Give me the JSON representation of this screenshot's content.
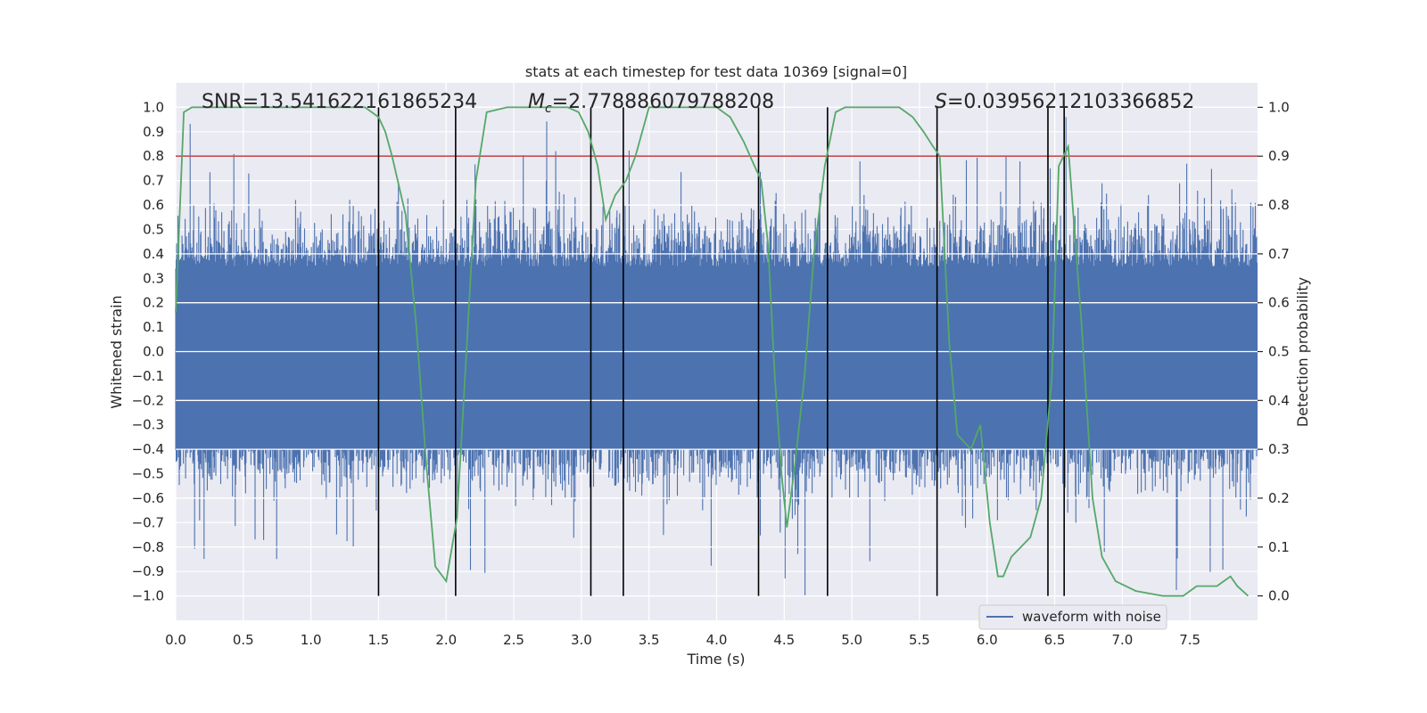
{
  "chart_data": {
    "type": "line",
    "title": "stats at each timestep for test data 10369 [signal=0]",
    "xlabel": "Time (s)",
    "ylabel": "Whitened strain",
    "y2label": "Detection probability",
    "xlim": [
      0.0,
      8.0
    ],
    "ylim": [
      -1.1,
      1.1
    ],
    "y2lim": [
      -0.05,
      1.05
    ],
    "xticks": [
      "0.0",
      "0.5",
      "1.0",
      "1.5",
      "2.0",
      "2.5",
      "3.0",
      "3.5",
      "4.0",
      "4.5",
      "5.0",
      "5.5",
      "6.0",
      "6.5",
      "7.0",
      "7.5"
    ],
    "yticks": [
      "1.0",
      "0.9",
      "0.8",
      "0.7",
      "0.6",
      "0.5",
      "0.4",
      "0.3",
      "0.2",
      "0.1",
      "0.0",
      "−0.1",
      "−0.2",
      "−0.3",
      "−0.4",
      "−0.5",
      "−0.6",
      "−0.7",
      "−0.8",
      "−0.9",
      "−1.0"
    ],
    "y2ticks": [
      "1.0",
      "0.9",
      "0.8",
      "0.7",
      "0.6",
      "0.5",
      "0.4",
      "0.3",
      "0.2",
      "0.1",
      "0.0"
    ],
    "threshold": 0.9,
    "annotations": {
      "snr": "SNR=13.541622161865234",
      "mc_symbol": "M",
      "mc_sub": "c",
      "mc_value": "=2.778886079788208",
      "s_symbol": "S",
      "s_value": "=0.03956212103366852"
    },
    "event_lines_x": [
      1.5,
      2.07,
      3.07,
      3.31,
      4.31,
      4.82,
      5.63,
      6.45,
      6.57
    ],
    "legend": {
      "label": "waveform with noise",
      "position": "lower-right"
    },
    "series": [
      {
        "name": "waveform with noise",
        "color": "#4c72b0",
        "description": "whitened strain noise, approx amplitude ±0.35 core with spikes up to ±1.0",
        "core_amplitude": 0.35,
        "max_amplitude": 1.0
      },
      {
        "name": "Detection probability",
        "color": "#55a868",
        "x": [
          0.0,
          0.06,
          0.12,
          0.2,
          0.4,
          0.6,
          0.8,
          1.0,
          1.2,
          1.4,
          1.5,
          1.55,
          1.6,
          1.7,
          1.78,
          1.85,
          1.92,
          2.0,
          2.08,
          2.15,
          2.22,
          2.3,
          2.45,
          2.6,
          2.8,
          2.9,
          2.98,
          3.05,
          3.12,
          3.18,
          3.25,
          3.33,
          3.4,
          3.45,
          3.5,
          3.6,
          3.8,
          4.0,
          4.1,
          4.2,
          4.28,
          4.33,
          4.38,
          4.43,
          4.48,
          4.52,
          4.58,
          4.65,
          4.72,
          4.8,
          4.88,
          4.95,
          5.05,
          5.2,
          5.35,
          5.45,
          5.53,
          5.6,
          5.65,
          5.72,
          5.78,
          5.88,
          5.95,
          6.02,
          6.08,
          6.12,
          6.18,
          6.25,
          6.32,
          6.4,
          6.48,
          6.53,
          6.6,
          6.7,
          6.78,
          6.85,
          6.95,
          7.1,
          7.3,
          7.45,
          7.5,
          7.55,
          7.62,
          7.7,
          7.75,
          7.8,
          7.85,
          7.93
        ],
        "values": [
          0.58,
          0.99,
          1.0,
          1.0,
          1.0,
          1.0,
          1.0,
          1.0,
          1.0,
          1.0,
          0.98,
          0.95,
          0.9,
          0.78,
          0.55,
          0.28,
          0.06,
          0.03,
          0.16,
          0.5,
          0.85,
          0.99,
          1.0,
          1.0,
          1.0,
          1.0,
          0.99,
          0.95,
          0.88,
          0.77,
          0.82,
          0.85,
          0.9,
          0.95,
          1.0,
          1.0,
          1.0,
          1.0,
          0.98,
          0.93,
          0.88,
          0.85,
          0.72,
          0.45,
          0.25,
          0.14,
          0.27,
          0.45,
          0.7,
          0.88,
          0.99,
          1.0,
          1.0,
          1.0,
          1.0,
          0.98,
          0.95,
          0.92,
          0.9,
          0.52,
          0.33,
          0.3,
          0.35,
          0.15,
          0.04,
          0.04,
          0.08,
          0.1,
          0.12,
          0.2,
          0.45,
          0.88,
          0.92,
          0.55,
          0.2,
          0.08,
          0.03,
          0.01,
          0.0,
          0.0,
          0.01,
          0.02,
          0.02,
          0.02,
          0.03,
          0.04,
          0.02,
          0.0
        ]
      }
    ]
  }
}
